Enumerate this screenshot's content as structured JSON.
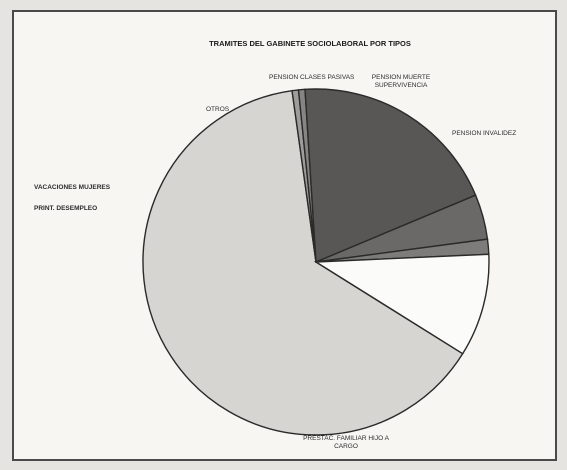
{
  "chart_data": {
    "type": "pie",
    "title": "TRAMITES DEL GABINETE SOCIOLABORAL POR TIPOS",
    "slices": [
      {
        "label": "PRESTAC. FAMILIAR HIJO A CARGO",
        "value": 63.9,
        "color": "#d7d5d2"
      },
      {
        "label": "PRINT. DESEMPLEO",
        "value": 0.6,
        "color": "#9e9d9b"
      },
      {
        "label": "VACACIONES MUJERES",
        "value": 0.6,
        "color": "#868584"
      },
      {
        "label": "OTROS",
        "value": 19.7,
        "color": "#585756"
      },
      {
        "label": "PENSION CLASES PASIVAS",
        "value": 4.2,
        "color": "#6a6968"
      },
      {
        "label": "PENSION MUERTE SUPERVIVENCIA",
        "value": 1.4,
        "color": "#7d7c7b"
      },
      {
        "label": "PENSION INVALIDEZ",
        "value": 9.6,
        "color": "#fbfbfa"
      }
    ]
  }
}
